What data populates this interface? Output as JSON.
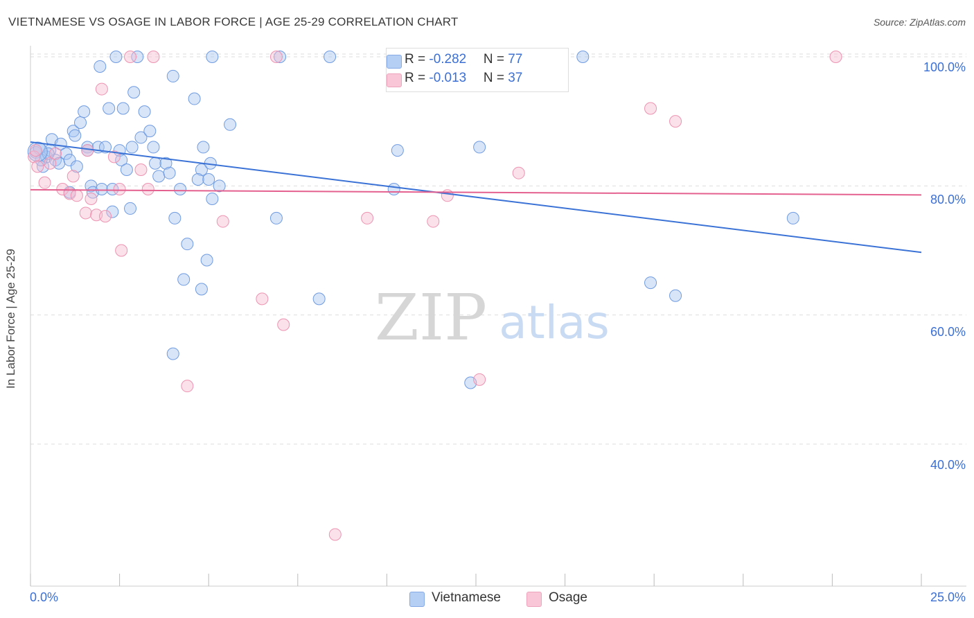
{
  "header": {
    "title": "VIETNAMESE VS OSAGE IN LABOR FORCE | AGE 25-29 CORRELATION CHART",
    "source": "Source: ZipAtlas.com"
  },
  "watermark": {
    "zip": "ZIP",
    "atlas": "atlas"
  },
  "legend": {
    "rows": [
      {
        "r_label": "R = ",
        "r_value": "-0.282",
        "n_label": "N = ",
        "n_value": "77",
        "color": "#9dbcf0"
      },
      {
        "r_label": "R = ",
        "r_value": "-0.013",
        "n_label": "N = ",
        "n_value": "37",
        "color": "#f4a9c1"
      }
    ]
  },
  "bottom_legend": [
    "Vietnamese",
    "Osage"
  ],
  "colors": {
    "vietnamese_fill": "#a9c6f2",
    "vietnamese_stroke": "#6f9be0",
    "vietnamese_line": "#3a72d6",
    "osage_fill": "#f7bdd0",
    "osage_stroke": "#ec93b2",
    "osage_line": "#e4608e",
    "tick_text": "#3b6fd4",
    "grid": "#dddddd"
  },
  "chart_data": {
    "type": "scatter",
    "title": "VIETNAMESE VS OSAGE IN LABOR FORCE | AGE 25-29 CORRELATION CHART",
    "xlabel": "",
    "ylabel": "In Labor Force | Age 25-29",
    "xlim": [
      0,
      25
    ],
    "ylim": [
      18,
      101.5
    ],
    "x_tick_labels": [
      {
        "value": 0,
        "label": "0.0%"
      },
      {
        "value": 25,
        "label": "25.0%"
      }
    ],
    "y_tick_labels": [
      {
        "value": 100,
        "label": "100.0%"
      },
      {
        "value": 80,
        "label": "80.0%"
      },
      {
        "value": 60,
        "label": "60.0%"
      },
      {
        "value": 40,
        "label": "40.0%"
      }
    ],
    "grid": true,
    "legend_position": "top-center",
    "series": [
      {
        "name": "Vietnamese",
        "r": -0.282,
        "n": 77,
        "trend": {
          "x": [
            0,
            25
          ],
          "y": [
            86.8,
            69.7
          ]
        },
        "points": [
          [
            0.15,
            85.2
          ],
          [
            0.25,
            85.8
          ],
          [
            0.35,
            83.0
          ],
          [
            0.45,
            84.5
          ],
          [
            0.55,
            85.5
          ],
          [
            0.6,
            87.2
          ],
          [
            0.7,
            84.0
          ],
          [
            0.8,
            83.5
          ],
          [
            0.85,
            86.5
          ],
          [
            1.0,
            85.0
          ],
          [
            1.1,
            84.0
          ],
          [
            1.2,
            88.5
          ],
          [
            1.25,
            87.8
          ],
          [
            1.3,
            83.0
          ],
          [
            1.4,
            89.8
          ],
          [
            1.5,
            91.5
          ],
          [
            1.6,
            86.0
          ],
          [
            1.7,
            80.0
          ],
          [
            1.75,
            79.0
          ],
          [
            1.9,
            86.0
          ],
          [
            1.95,
            98.5
          ],
          [
            2.0,
            79.5
          ],
          [
            2.1,
            86.0
          ],
          [
            2.2,
            92.0
          ],
          [
            2.3,
            76.0
          ],
          [
            2.4,
            100.0
          ],
          [
            2.5,
            85.5
          ],
          [
            2.55,
            84.0
          ],
          [
            2.6,
            92.0
          ],
          [
            2.7,
            82.5
          ],
          [
            2.8,
            76.5
          ],
          [
            2.9,
            94.5
          ],
          [
            3.0,
            100.0
          ],
          [
            3.1,
            87.5
          ],
          [
            3.2,
            91.5
          ],
          [
            3.35,
            88.5
          ],
          [
            3.45,
            86.0
          ],
          [
            3.5,
            83.5
          ],
          [
            3.6,
            81.5
          ],
          [
            3.8,
            83.5
          ],
          [
            4.0,
            97.0
          ],
          [
            4.05,
            75.0
          ],
          [
            4.2,
            79.5
          ],
          [
            4.4,
            71.0
          ],
          [
            4.6,
            93.5
          ],
          [
            4.8,
            82.5
          ],
          [
            4.85,
            86.0
          ],
          [
            4.95,
            68.5
          ],
          [
            5.05,
            83.5
          ],
          [
            5.1,
            78.0
          ],
          [
            5.3,
            80.0
          ],
          [
            5.6,
            89.5
          ],
          [
            5.1,
            100.0
          ],
          [
            7.0,
            100.0
          ],
          [
            8.1,
            62.5
          ],
          [
            8.4,
            100.0
          ],
          [
            10.2,
            79.5
          ],
          [
            10.3,
            85.5
          ],
          [
            12.35,
            49.5
          ],
          [
            12.6,
            86.0
          ],
          [
            15.5,
            100.0
          ],
          [
            17.4,
            65.0
          ],
          [
            18.1,
            63.0
          ],
          [
            21.4,
            75.0
          ],
          [
            6.9,
            75.0
          ],
          [
            4.3,
            65.5
          ],
          [
            4.7,
            81.0
          ],
          [
            5.0,
            81.0
          ],
          [
            4.8,
            64.0
          ],
          [
            4.0,
            54.0
          ],
          [
            2.85,
            86.0
          ],
          [
            1.1,
            79.0
          ],
          [
            2.3,
            79.5
          ],
          [
            3.9,
            82.0
          ],
          [
            1.6,
            85.5
          ],
          [
            0.3,
            84.0
          ],
          [
            0.5,
            85.0
          ]
        ]
      },
      {
        "name": "Osage",
        "r": -0.013,
        "n": 37,
        "trend": {
          "x": [
            0,
            25
          ],
          "y": [
            79.4,
            78.6
          ]
        },
        "points": [
          [
            0.1,
            84.5
          ],
          [
            0.2,
            83.0
          ],
          [
            0.4,
            80.5
          ],
          [
            0.55,
            83.5
          ],
          [
            0.7,
            85.0
          ],
          [
            0.9,
            79.5
          ],
          [
            1.1,
            78.8
          ],
          [
            1.2,
            81.5
          ],
          [
            1.3,
            78.5
          ],
          [
            1.55,
            75.8
          ],
          [
            1.7,
            78.0
          ],
          [
            1.85,
            75.5
          ],
          [
            2.0,
            95.0
          ],
          [
            2.1,
            75.3
          ],
          [
            2.35,
            84.5
          ],
          [
            2.5,
            79.5
          ],
          [
            2.55,
            70.0
          ],
          [
            2.8,
            100.0
          ],
          [
            3.1,
            82.5
          ],
          [
            3.3,
            79.5
          ],
          [
            3.45,
            100.0
          ],
          [
            4.4,
            49.0
          ],
          [
            5.4,
            74.5
          ],
          [
            6.5,
            62.5
          ],
          [
            6.9,
            100.0
          ],
          [
            7.1,
            58.5
          ],
          [
            8.55,
            26.0
          ],
          [
            9.45,
            75.0
          ],
          [
            11.3,
            74.5
          ],
          [
            11.7,
            78.5
          ],
          [
            12.6,
            50.0
          ],
          [
            13.7,
            82.0
          ],
          [
            17.4,
            92.0
          ],
          [
            18.1,
            90.0
          ],
          [
            22.6,
            100.0
          ],
          [
            1.6,
            85.5
          ],
          [
            0.15,
            85.5
          ]
        ]
      }
    ]
  }
}
